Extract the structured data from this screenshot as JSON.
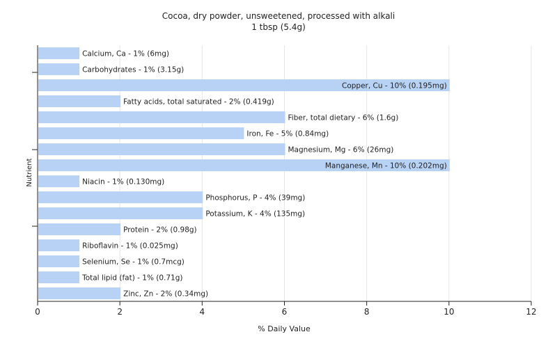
{
  "chart_data": {
    "type": "bar",
    "orientation": "horizontal",
    "title": "Cocoa, dry powder, unsweetened, processed with alkali",
    "subtitle": "1 tbsp (5.4g)",
    "xlabel": "% Daily Value",
    "ylabel": "Nutrient",
    "xlim": [
      0,
      12
    ],
    "xticks": [
      0,
      2,
      4,
      6,
      8,
      10,
      12
    ],
    "grid": true,
    "bar_color": "#b7d2f5",
    "categories": [
      "Calcium, Ca",
      "Carbohydrates",
      "Copper, Cu",
      "Fatty acids, total saturated",
      "Fiber, total dietary",
      "Iron, Fe",
      "Magnesium, Mg",
      "Manganese, Mn",
      "Niacin",
      "Phosphorus, P",
      "Potassium, K",
      "Protein",
      "Riboflavin",
      "Selenium, Se",
      "Total lipid (fat)",
      "Zinc, Zn"
    ],
    "values": [
      1,
      1,
      10,
      2,
      6,
      5,
      6,
      10,
      1,
      4,
      4,
      2,
      1,
      1,
      1,
      2
    ],
    "labels": [
      "Calcium, Ca - 1% (6mg)",
      "Carbohydrates - 1% (3.15g)",
      "Copper, Cu - 10% (0.195mg)",
      "Fatty acids, total saturated - 2% (0.419g)",
      "Fiber, total dietary - 6% (1.6g)",
      "Iron, Fe - 5% (0.84mg)",
      "Magnesium, Mg - 6% (26mg)",
      "Manganese, Mn - 10% (0.202mg)",
      "Niacin - 1% (0.130mg)",
      "Phosphorus, P - 4% (39mg)",
      "Potassium, K - 4% (135mg)",
      "Protein - 2% (0.98g)",
      "Riboflavin - 1% (0.025mg)",
      "Selenium, Se - 1% (0.7mcg)",
      "Total lipid (fat) - 1% (0.71g)",
      "Zinc, Zn - 2% (0.34mg)"
    ]
  }
}
